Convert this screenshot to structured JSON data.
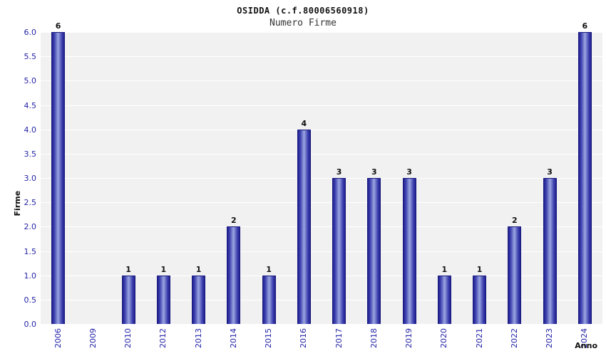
{
  "chart_data": {
    "type": "bar",
    "title": "OSIDDA (c.f.80006560918)",
    "subtitle": "Numero Firme",
    "xlabel": "Anno",
    "ylabel": "Firme",
    "categories": [
      "2006",
      "2009",
      "2010",
      "2012",
      "2013",
      "2014",
      "2015",
      "2016",
      "2017",
      "2018",
      "2019",
      "2020",
      "2021",
      "2022",
      "2023",
      "2024"
    ],
    "values": [
      6,
      0,
      1,
      1,
      1,
      2,
      1,
      4,
      3,
      3,
      3,
      1,
      1,
      2,
      3,
      6
    ],
    "ylim": [
      0,
      6
    ],
    "yticks": [
      "0.0",
      "0.5",
      "1.0",
      "1.5",
      "2.0",
      "2.5",
      "3.0",
      "3.5",
      "4.0",
      "4.5",
      "5.0",
      "5.5",
      "6.0"
    ],
    "grid": true,
    "legend": "none",
    "colors": {
      "bar_edge": "#1a1a7e",
      "bar_dark": "#20208e",
      "bar_light": "#9aa6e0",
      "plot_background": "#f1f1f1",
      "gridline": "#ffffff",
      "tick_label": "#2424a8",
      "value_label": "#111111"
    }
  }
}
